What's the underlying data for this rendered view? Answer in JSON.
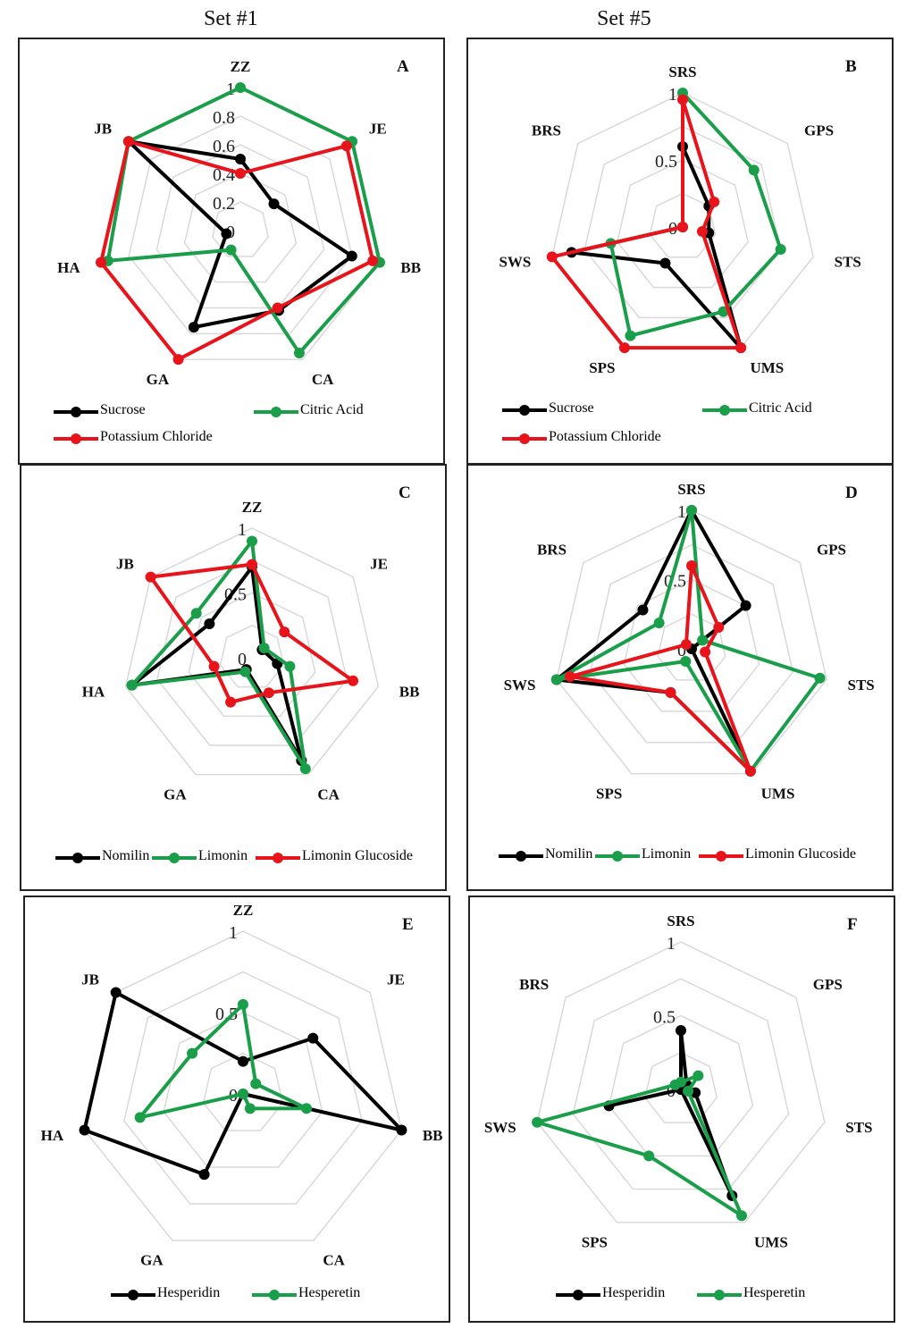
{
  "set_titles": [
    "Set #1",
    "Set #5"
  ],
  "chart_data": [
    {
      "type": "radar",
      "panel": "A",
      "categories": [
        "ZZ",
        "JE",
        "BB",
        "CA",
        "GA",
        "HA",
        "JB"
      ],
      "radial_ticks": [
        "0",
        "0.2",
        "0.4",
        "0.6",
        "0.8",
        "1"
      ],
      "rmax": 1,
      "series": [
        {
          "name": "Sucrose",
          "color": "#000000",
          "values": [
            0.5,
            0.3,
            0.8,
            0.62,
            0.75,
            0.1,
            1.0
          ]
        },
        {
          "name": "Citric Acid",
          "color": "#1a9e4a",
          "values": [
            1.0,
            1.0,
            1.0,
            0.95,
            0.15,
            0.95,
            1.0
          ]
        },
        {
          "name": "Potassium Chloride",
          "color": "#e8141b",
          "values": [
            0.4,
            0.95,
            0.95,
            0.6,
            1.0,
            1.0,
            1.0
          ]
        }
      ]
    },
    {
      "type": "radar",
      "panel": "B",
      "categories": [
        "SRS",
        "GPS",
        "STS",
        "UMS",
        "SPS",
        "SWS",
        "BRS"
      ],
      "radial_ticks": [
        "0",
        "0.5",
        "1"
      ],
      "rmax": 1,
      "series": [
        {
          "name": "Sucrose",
          "color": "#000000",
          "values": [
            0.6,
            0.25,
            0.2,
            1.0,
            0.3,
            0.85,
            0.0
          ]
        },
        {
          "name": "Citric Acid",
          "color": "#1a9e4a",
          "values": [
            1.0,
            0.68,
            0.75,
            0.7,
            0.9,
            0.55,
            0.0
          ]
        },
        {
          "name": "Potassium Chloride",
          "color": "#e8141b",
          "values": [
            0.95,
            0.3,
            0.15,
            1.0,
            1.0,
            1.0,
            0.0
          ]
        }
      ]
    },
    {
      "type": "radar",
      "panel": "C",
      "categories": [
        "ZZ",
        "JE",
        "BB",
        "CA",
        "GA",
        "HA",
        "JB"
      ],
      "radial_ticks": [
        "0",
        "0.5",
        "1"
      ],
      "rmax": 1,
      "series": [
        {
          "name": "Nomilin",
          "color": "#000000",
          "values": [
            0.7,
            0.1,
            0.2,
            0.88,
            0.1,
            0.95,
            0.42
          ]
        },
        {
          "name": "Limonin",
          "color": "#1a9e4a",
          "values": [
            0.9,
            0.12,
            0.3,
            0.95,
            0.12,
            0.95,
            0.55
          ]
        },
        {
          "name": "Limonin Glucoside",
          "color": "#e8141b",
          "values": [
            0.72,
            0.32,
            0.8,
            0.3,
            0.38,
            0.3,
            1.0
          ]
        }
      ]
    },
    {
      "type": "radar",
      "panel": "D",
      "categories": [
        "SRS",
        "GPS",
        "STS",
        "UMS",
        "SPS",
        "SWS",
        "BRS"
      ],
      "radial_ticks": [
        "0",
        "0.5",
        "1"
      ],
      "rmax": 1,
      "series": [
        {
          "name": "Nomilin",
          "color": "#000000",
          "values": [
            1.0,
            0.5,
            0.0,
            0.98,
            0.35,
            1.0,
            0.45
          ]
        },
        {
          "name": "Limonin",
          "color": "#1a9e4a",
          "values": [
            1.0,
            0.1,
            0.95,
            0.98,
            0.1,
            1.0,
            0.3
          ]
        },
        {
          "name": "Limonin Glucoside",
          "color": "#e8141b",
          "values": [
            0.6,
            0.25,
            0.1,
            0.98,
            0.35,
            0.9,
            0.05
          ]
        }
      ]
    },
    {
      "type": "radar",
      "panel": "E",
      "categories": [
        "ZZ",
        "JE",
        "BB",
        "CA",
        "GA",
        "HA",
        "JB"
      ],
      "radial_ticks": [
        "0",
        "0.5",
        "1"
      ],
      "rmax": 1,
      "series": [
        {
          "name": "Hesperidin",
          "color": "#000000",
          "values": [
            0.2,
            0.55,
            1.0,
            0.0,
            0.55,
            1.0,
            1.0
          ]
        },
        {
          "name": "Hesperetin",
          "color": "#1a9e4a",
          "values": [
            0.55,
            0.1,
            0.4,
            0.1,
            0.0,
            0.65,
            0.4
          ]
        }
      ]
    },
    {
      "type": "radar",
      "panel": "F",
      "categories": [
        "SRS",
        "GPS",
        "STS",
        "UMS",
        "SPS",
        "SWS",
        "BRS"
      ],
      "radial_ticks": [
        "0",
        "0.5",
        "1"
      ],
      "rmax": 1,
      "series": [
        {
          "name": "Hesperidin",
          "color": "#000000",
          "values": [
            0.4,
            0.05,
            0.1,
            0.8,
            0.0,
            0.5,
            0.0
          ]
        },
        {
          "name": "Hesperetin",
          "color": "#1a9e4a",
          "values": [
            0.05,
            0.15,
            0.05,
            0.95,
            0.5,
            1.0,
            0.05
          ]
        }
      ]
    }
  ]
}
